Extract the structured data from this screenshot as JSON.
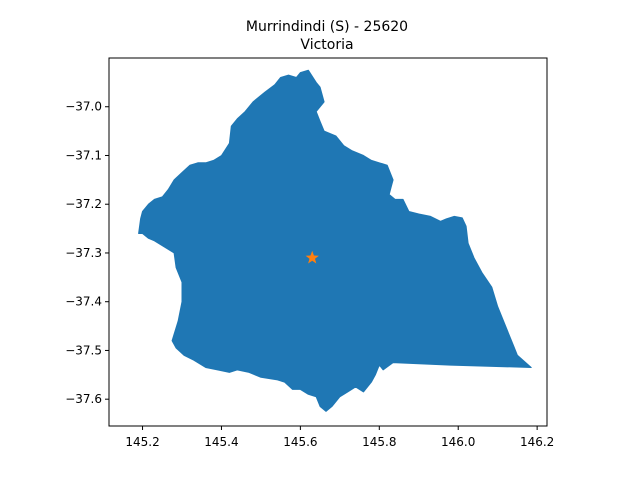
{
  "map": {
    "title_line1": "Murrindindi (S) - 25620",
    "title_line2": "Victoria",
    "region_color": "#1f77b4",
    "marker_color": "#ff7f0e",
    "marker_shape": "star",
    "centroid": {
      "lon": 145.63,
      "lat": -37.31
    },
    "xlim": [
      145.115,
      146.225
    ],
    "ylim": [
      -37.655,
      -36.9
    ],
    "x_ticks": [
      {
        "value": 145.2,
        "label": "145.2"
      },
      {
        "value": 145.4,
        "label": "145.4"
      },
      {
        "value": 145.6,
        "label": "145.6"
      },
      {
        "value": 145.8,
        "label": "145.8"
      },
      {
        "value": 146.0,
        "label": "146.0"
      },
      {
        "value": 146.2,
        "label": "146.2"
      }
    ],
    "y_ticks": [
      {
        "value": -37.0,
        "label": "−37.0"
      },
      {
        "value": -37.1,
        "label": "−37.1"
      },
      {
        "value": -37.2,
        "label": "−37.2"
      },
      {
        "value": -37.3,
        "label": "−37.3"
      },
      {
        "value": -37.4,
        "label": "−37.4"
      },
      {
        "value": -37.5,
        "label": "−37.5"
      },
      {
        "value": -37.6,
        "label": "−37.6"
      }
    ],
    "boundary": [
      [
        145.57,
        -36.935
      ],
      [
        145.59,
        -36.94
      ],
      [
        145.6,
        -36.93
      ],
      [
        145.62,
        -36.925
      ],
      [
        145.64,
        -36.95
      ],
      [
        145.65,
        -36.96
      ],
      [
        145.66,
        -36.99
      ],
      [
        145.64,
        -37.01
      ],
      [
        145.65,
        -37.03
      ],
      [
        145.66,
        -37.05
      ],
      [
        145.69,
        -37.06
      ],
      [
        145.71,
        -37.08
      ],
      [
        145.73,
        -37.09
      ],
      [
        145.76,
        -37.1
      ],
      [
        145.78,
        -37.11
      ],
      [
        145.8,
        -37.115
      ],
      [
        145.82,
        -37.12
      ],
      [
        145.835,
        -37.15
      ],
      [
        145.83,
        -37.165
      ],
      [
        145.825,
        -37.18
      ],
      [
        145.84,
        -37.19
      ],
      [
        145.86,
        -37.19
      ],
      [
        145.875,
        -37.215
      ],
      [
        145.9,
        -37.22
      ],
      [
        145.93,
        -37.225
      ],
      [
        145.955,
        -37.235
      ],
      [
        145.97,
        -37.23
      ],
      [
        145.99,
        -37.225
      ],
      [
        146.01,
        -37.228
      ],
      [
        146.02,
        -37.245
      ],
      [
        146.025,
        -37.28
      ],
      [
        146.04,
        -37.31
      ],
      [
        146.06,
        -37.34
      ],
      [
        146.085,
        -37.37
      ],
      [
        146.1,
        -37.41
      ],
      [
        146.12,
        -37.45
      ],
      [
        146.14,
        -37.49
      ],
      [
        146.15,
        -37.51
      ],
      [
        146.185,
        -37.535
      ],
      [
        145.98,
        -37.53
      ],
      [
        145.835,
        -37.525
      ],
      [
        145.81,
        -37.54
      ],
      [
        145.8,
        -37.53
      ],
      [
        145.79,
        -37.55
      ],
      [
        145.78,
        -37.565
      ],
      [
        145.76,
        -37.585
      ],
      [
        145.74,
        -37.575
      ],
      [
        145.72,
        -37.585
      ],
      [
        145.7,
        -37.595
      ],
      [
        145.68,
        -37.615
      ],
      [
        145.665,
        -37.625
      ],
      [
        145.65,
        -37.615
      ],
      [
        145.64,
        -37.595
      ],
      [
        145.62,
        -37.59
      ],
      [
        145.6,
        -37.58
      ],
      [
        145.58,
        -37.58
      ],
      [
        145.56,
        -37.565
      ],
      [
        145.54,
        -37.56
      ],
      [
        145.5,
        -37.555
      ],
      [
        145.47,
        -37.545
      ],
      [
        145.44,
        -37.54
      ],
      [
        145.42,
        -37.545
      ],
      [
        145.39,
        -37.54
      ],
      [
        145.36,
        -37.535
      ],
      [
        145.33,
        -37.52
      ],
      [
        145.305,
        -37.51
      ],
      [
        145.285,
        -37.495
      ],
      [
        145.275,
        -37.48
      ],
      [
        145.29,
        -37.44
      ],
      [
        145.3,
        -37.4
      ],
      [
        145.3,
        -37.36
      ],
      [
        145.285,
        -37.33
      ],
      [
        145.28,
        -37.3
      ],
      [
        145.26,
        -37.29
      ],
      [
        145.23,
        -37.275
      ],
      [
        145.215,
        -37.27
      ],
      [
        145.2,
        -37.26
      ],
      [
        145.19,
        -37.26
      ],
      [
        145.195,
        -37.23
      ],
      [
        145.2,
        -37.215
      ],
      [
        145.215,
        -37.2
      ],
      [
        145.23,
        -37.19
      ],
      [
        145.25,
        -37.185
      ],
      [
        145.265,
        -37.17
      ],
      [
        145.28,
        -37.15
      ],
      [
        145.3,
        -37.135
      ],
      [
        145.32,
        -37.12
      ],
      [
        145.34,
        -37.115
      ],
      [
        145.36,
        -37.115
      ],
      [
        145.38,
        -37.11
      ],
      [
        145.4,
        -37.1
      ],
      [
        145.42,
        -37.075
      ],
      [
        145.425,
        -37.04
      ],
      [
        145.44,
        -37.025
      ],
      [
        145.46,
        -37.01
      ],
      [
        145.48,
        -36.99
      ],
      [
        145.51,
        -36.97
      ],
      [
        145.535,
        -36.955
      ],
      [
        145.55,
        -36.94
      ]
    ]
  }
}
